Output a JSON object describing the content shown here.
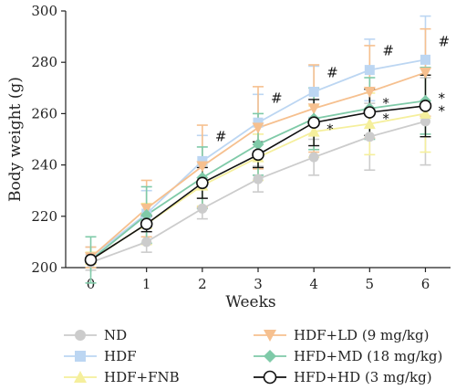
{
  "chart_data": {
    "type": "line",
    "title": "",
    "xlabel": "Weeks",
    "ylabel": "Body weight (g)",
    "x": [
      0,
      1,
      2,
      3,
      4,
      5,
      6
    ],
    "xlim": [
      -0.45,
      6.45
    ],
    "ylim": [
      200,
      300
    ],
    "yticks": [
      200,
      220,
      240,
      260,
      280,
      300
    ],
    "grid": false,
    "legend_position": "bottom",
    "series": [
      {
        "name": "ND",
        "color": "#cccccc",
        "marker": "circle",
        "values": [
          202,
          210,
          223,
          234.5,
          243,
          251,
          257
        ],
        "errors": [
          3,
          4,
          4,
          5,
          7,
          13,
          17
        ]
      },
      {
        "name": "HDF",
        "color": "#bcd6f2",
        "marker": "square",
        "values": [
          204,
          221,
          241.5,
          256.5,
          268.5,
          277,
          281
        ],
        "errors": [
          4,
          9,
          10,
          11,
          10,
          12,
          17
        ]
      },
      {
        "name": "HDF+FNB",
        "color": "#f5ef9c",
        "marker": "triangle-up",
        "values": [
          203,
          217,
          232,
          243,
          253,
          256,
          260
        ],
        "errors": [
          3,
          8,
          8,
          9,
          10,
          12,
          15
        ]
      },
      {
        "name": "HDF+LD (9 mg/kg)",
        "color": "#f6c08f",
        "marker": "triangle-down",
        "values": [
          204,
          223,
          239.5,
          254.5,
          262,
          268.5,
          276
        ],
        "errors": [
          4,
          11,
          16,
          16,
          17,
          18,
          17
        ]
      },
      {
        "name": "HFD+MD (18 mg/kg)",
        "color": "#7fcaa8",
        "marker": "diamond",
        "values": [
          203,
          220.5,
          235,
          248,
          258,
          262,
          265
        ],
        "errors": [
          9,
          11,
          12,
          12,
          12,
          12,
          13
        ]
      },
      {
        "name": "HFD+HD (3 mg/kg)",
        "color": "#111111",
        "marker": "open-circle",
        "values": [
          203,
          217,
          233,
          244,
          256.5,
          260.5,
          263
        ],
        "errors": [
          1,
          3,
          6,
          5,
          9,
          9,
          12
        ]
      }
    ],
    "annotations": [
      {
        "text": "#",
        "x": 2,
        "y": 251
      },
      {
        "text": "#",
        "x": 3,
        "y": 266
      },
      {
        "text": "#",
        "x": 4,
        "y": 276
      },
      {
        "text": "#",
        "x": 5,
        "y": 284.5
      },
      {
        "text": "#",
        "x": 6,
        "y": 288
      },
      {
        "text": "*",
        "x": 4,
        "y": 254
      },
      {
        "text": "*",
        "x": 5,
        "y": 264
      },
      {
        "text": "*",
        "x": 5,
        "y": 258
      },
      {
        "text": "*",
        "x": 6,
        "y": 266
      },
      {
        "text": "*",
        "x": 6,
        "y": 261
      }
    ]
  }
}
